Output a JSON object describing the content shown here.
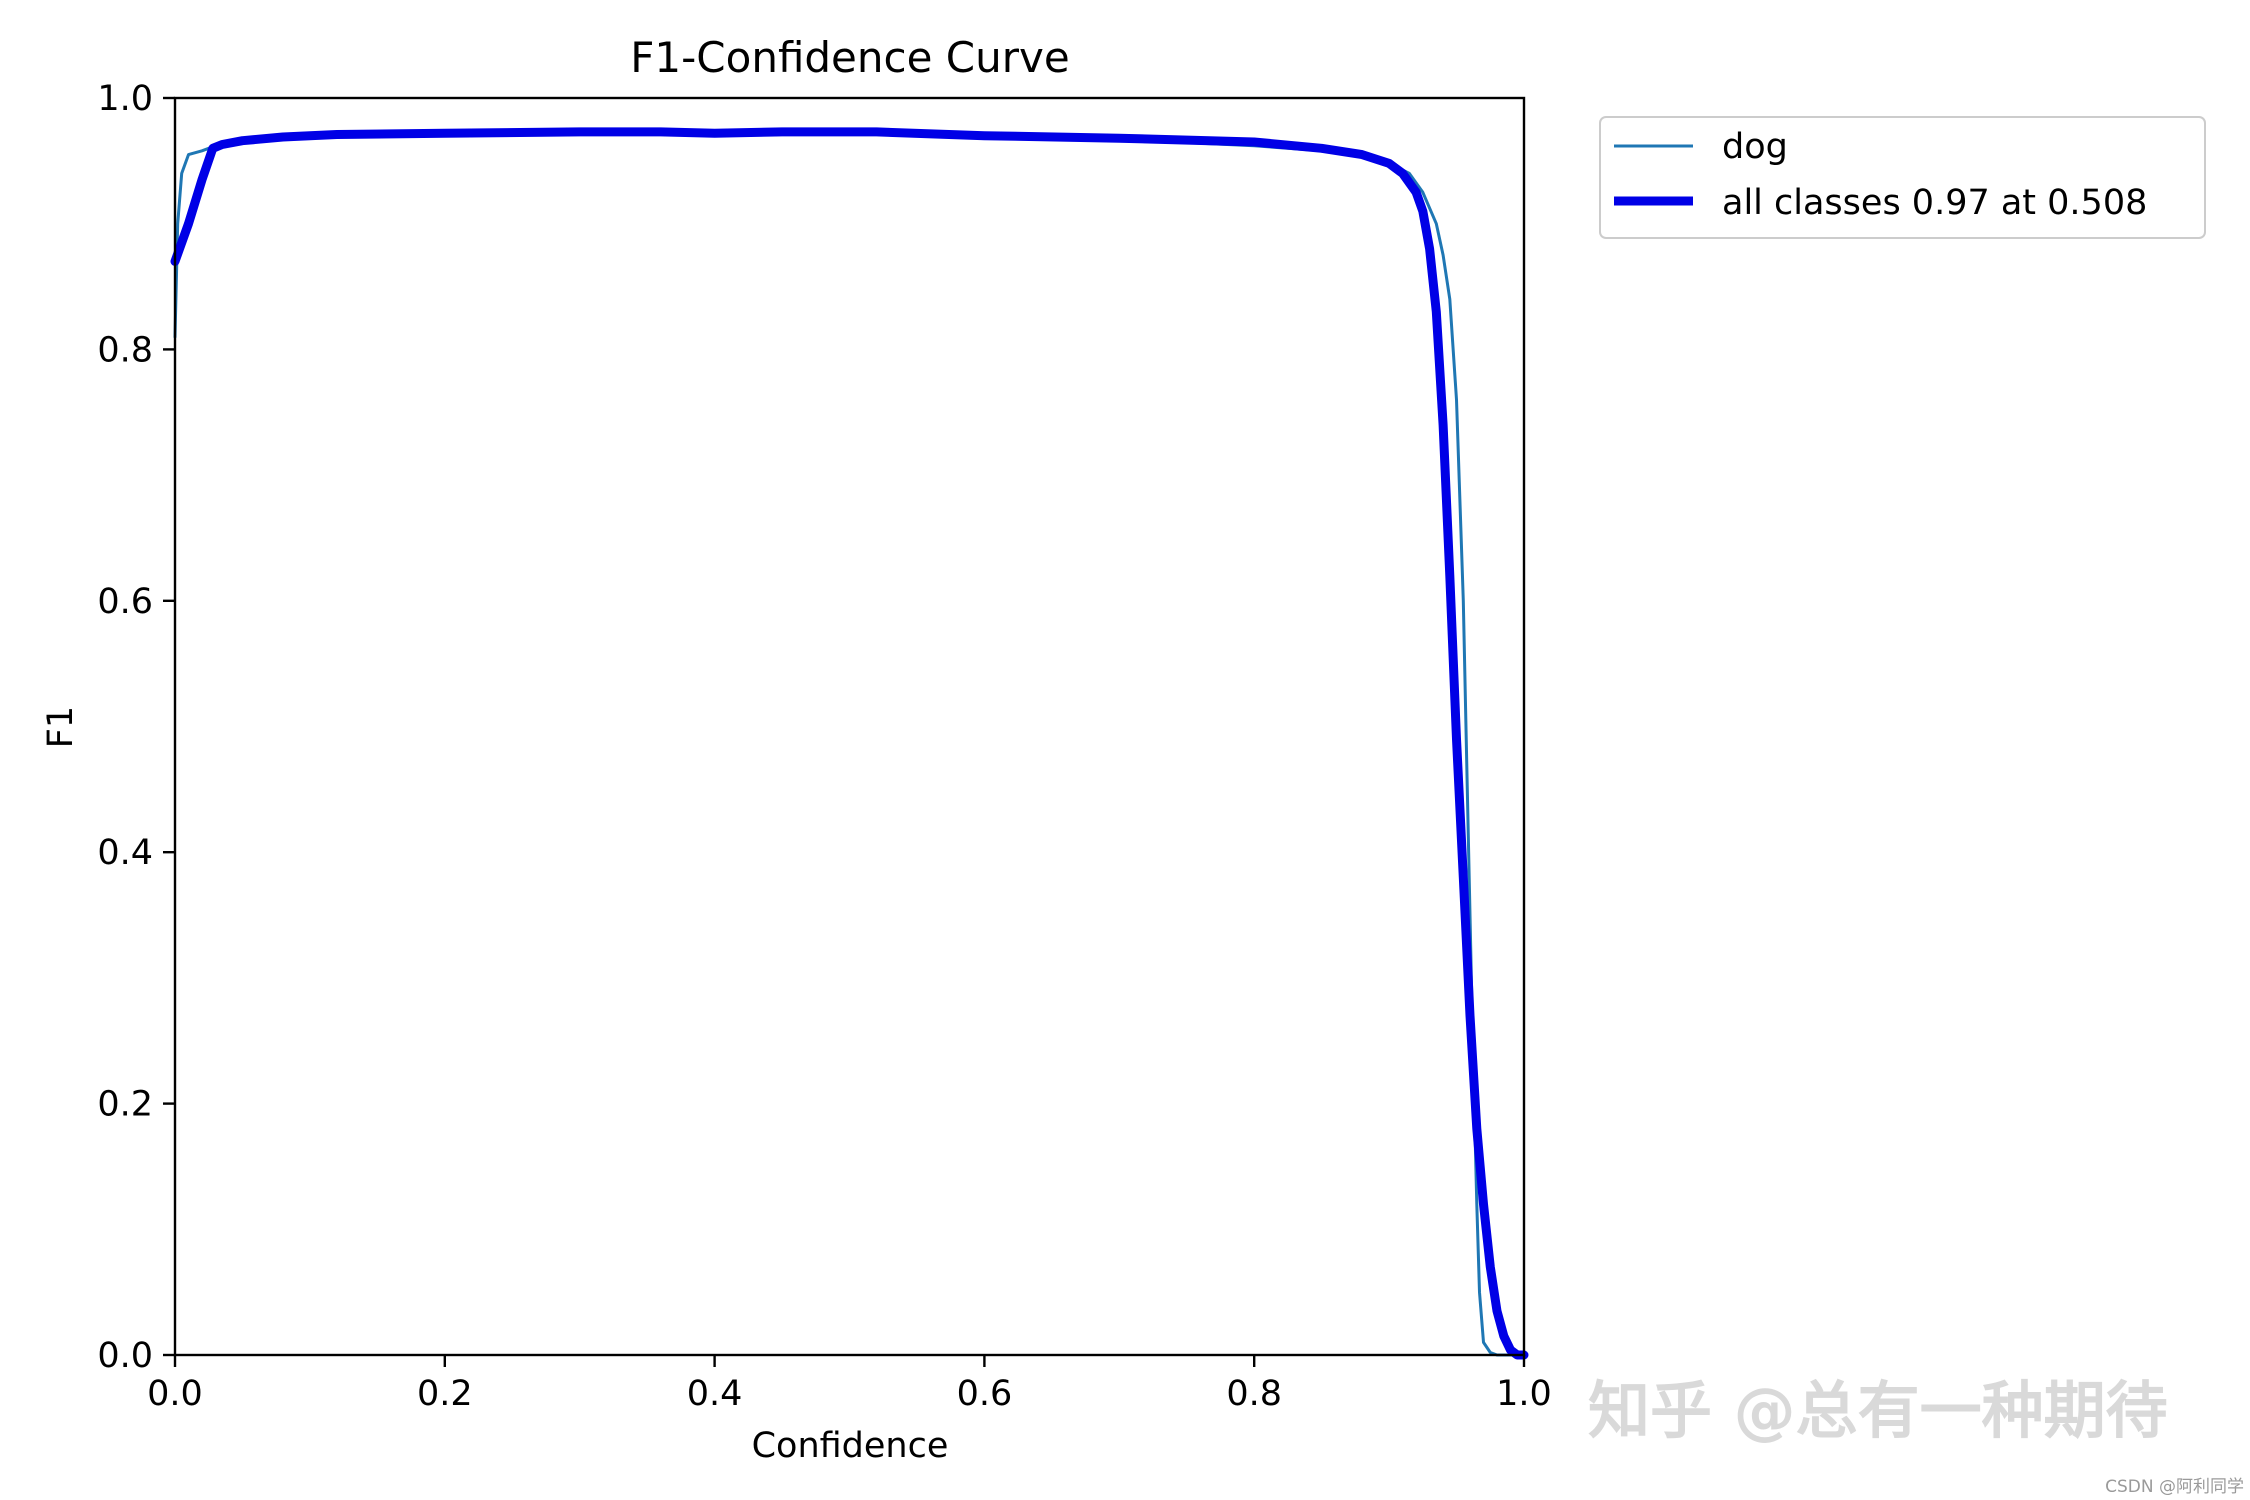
{
  "chart_data": {
    "type": "line",
    "title": "F1-Confidence Curve",
    "xlabel": "Confidence",
    "ylabel": "F1",
    "xlim": [
      0.0,
      1.0
    ],
    "ylim": [
      0.0,
      1.0
    ],
    "xticks": [
      "0.0",
      "0.2",
      "0.4",
      "0.6",
      "0.8",
      "1.0"
    ],
    "yticks": [
      "0.0",
      "0.2",
      "0.4",
      "0.6",
      "0.8",
      "1.0"
    ],
    "grid": false,
    "legend_position": "outside-top-right",
    "series": [
      {
        "name": "dog",
        "color": "#1f77b4",
        "style": "thin",
        "x": [
          0.0,
          0.002,
          0.005,
          0.01,
          0.02,
          0.03,
          0.05,
          0.1,
          0.2,
          0.3,
          0.36,
          0.4,
          0.45,
          0.5,
          0.52,
          0.6,
          0.7,
          0.8,
          0.85,
          0.88,
          0.9,
          0.915,
          0.925,
          0.935,
          0.94,
          0.945,
          0.95,
          0.955,
          0.958,
          0.962,
          0.965,
          0.967,
          0.97,
          0.975,
          0.98,
          0.99,
          1.0
        ],
        "y": [
          0.81,
          0.9,
          0.94,
          0.955,
          0.958,
          0.962,
          0.966,
          0.97,
          0.972,
          0.973,
          0.974,
          0.972,
          0.973,
          0.973,
          0.973,
          0.97,
          0.967,
          0.962,
          0.958,
          0.953,
          0.948,
          0.94,
          0.925,
          0.9,
          0.875,
          0.84,
          0.76,
          0.6,
          0.45,
          0.25,
          0.12,
          0.05,
          0.01,
          0.002,
          0.0,
          0.0,
          0.0
        ]
      },
      {
        "name": "all classes 0.97 at 0.508",
        "color": "#0000e6",
        "style": "thick",
        "x": [
          0.0,
          0.01,
          0.02,
          0.028,
          0.035,
          0.05,
          0.08,
          0.12,
          0.2,
          0.3,
          0.36,
          0.4,
          0.45,
          0.5,
          0.52,
          0.6,
          0.7,
          0.8,
          0.85,
          0.88,
          0.9,
          0.91,
          0.92,
          0.925,
          0.93,
          0.935,
          0.94,
          0.945,
          0.95,
          0.955,
          0.96,
          0.965,
          0.97,
          0.975,
          0.98,
          0.985,
          0.99,
          0.995,
          1.0
        ],
        "y": [
          0.87,
          0.9,
          0.935,
          0.96,
          0.963,
          0.966,
          0.969,
          0.971,
          0.972,
          0.973,
          0.973,
          0.972,
          0.973,
          0.973,
          0.973,
          0.97,
          0.968,
          0.965,
          0.96,
          0.955,
          0.948,
          0.94,
          0.925,
          0.91,
          0.88,
          0.83,
          0.74,
          0.62,
          0.49,
          0.38,
          0.27,
          0.18,
          0.12,
          0.07,
          0.035,
          0.015,
          0.004,
          0.0,
          0.0
        ]
      }
    ]
  },
  "watermark": {
    "text": "知乎 @总有一种期待",
    "source": "CSDN @阿利同学"
  }
}
